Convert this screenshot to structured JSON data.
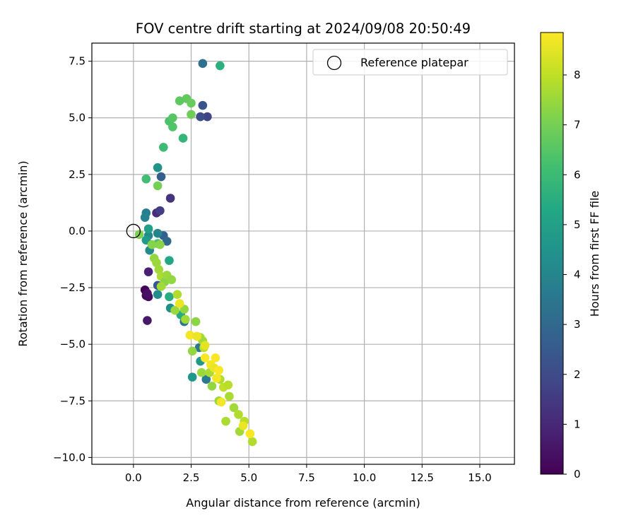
{
  "chart_data": {
    "type": "scatter",
    "title": "FOV centre drift starting at 2024/09/08 20:50:49",
    "xlabel": "Angular distance from reference (arcmin)",
    "ylabel": "Rotation from reference (arcmin)",
    "xlim": [
      -1.8,
      16.5
    ],
    "ylim": [
      -10.3,
      8.3
    ],
    "x_ticks": [
      0,
      2.5,
      5,
      7.5,
      10,
      12.5,
      15
    ],
    "x_tick_labels": [
      "0.0",
      "2.5",
      "5.0",
      "7.5",
      "10.0",
      "12.5",
      "15.0"
    ],
    "y_ticks": [
      7.5,
      5,
      2.5,
      0,
      -2.5,
      -5,
      -7.5,
      -10
    ],
    "y_tick_labels": [
      "7.5",
      "5.0",
      "2.5",
      "0.0",
      "−2.5",
      "−5.0",
      "−7.5",
      "−10.0"
    ],
    "grid": true,
    "legend": {
      "placement": "top-right",
      "entries": [
        "Reference platepar"
      ]
    },
    "reference_point": {
      "label": "Reference platepar",
      "x": 0.0,
      "y": 0.0,
      "marker": "open-circle"
    },
    "colorbar": {
      "label": "Hours from first FF file",
      "colormap": "viridis",
      "range": [
        0,
        8.85
      ],
      "ticks": [
        0,
        1,
        2,
        3,
        4,
        5,
        6,
        7,
        8
      ],
      "tick_labels": [
        "0",
        "1",
        "2",
        "3",
        "4",
        "5",
        "6",
        "7",
        "8"
      ]
    },
    "series": [
      {
        "color_by": "Hours from first FF file",
        "points": [
          {
            "x": 0.5,
            "y": -2.6,
            "c": 0.1
          },
          {
            "x": 0.55,
            "y": -2.85,
            "c": 0.2
          },
          {
            "x": 0.65,
            "y": -2.9,
            "c": 0.3
          },
          {
            "x": 0.6,
            "y": -2.75,
            "c": 0.4
          },
          {
            "x": 0.6,
            "y": -3.95,
            "c": 0.6
          },
          {
            "x": 0.65,
            "y": -1.8,
            "c": 0.8
          },
          {
            "x": 1.0,
            "y": 0.8,
            "c": 1.1
          },
          {
            "x": 1.6,
            "y": 1.45,
            "c": 1.3
          },
          {
            "x": 1.15,
            "y": 0.9,
            "c": 1.6
          },
          {
            "x": 3.2,
            "y": 5.05,
            "c": 1.8
          },
          {
            "x": 2.9,
            "y": 5.05,
            "c": 2.1
          },
          {
            "x": 3.0,
            "y": 5.55,
            "c": 2.3
          },
          {
            "x": 1.2,
            "y": 2.4,
            "c": 2.6
          },
          {
            "x": 1.05,
            "y": -2.4,
            "c": 2.4
          },
          {
            "x": 1.3,
            "y": -0.2,
            "c": 2.7
          },
          {
            "x": 1.45,
            "y": -0.45,
            "c": 3.0
          },
          {
            "x": 3.0,
            "y": 7.4,
            "c": 3.3
          },
          {
            "x": 2.2,
            "y": -4.0,
            "c": 3.4
          },
          {
            "x": 2.85,
            "y": -5.15,
            "c": 3.5
          },
          {
            "x": 3.15,
            "y": -6.55,
            "c": 3.6
          },
          {
            "x": 0.55,
            "y": 0.8,
            "c": 3.7
          },
          {
            "x": 0.5,
            "y": 0.6,
            "c": 3.9
          },
          {
            "x": 1.05,
            "y": -0.1,
            "c": 4.0
          },
          {
            "x": 0.65,
            "y": -0.2,
            "c": 4.1
          },
          {
            "x": 0.7,
            "y": -0.85,
            "c": 4.2
          },
          {
            "x": 1.05,
            "y": -2.8,
            "c": 4.3
          },
          {
            "x": 1.6,
            "y": -3.4,
            "c": 4.4
          },
          {
            "x": 2.55,
            "y": -6.45,
            "c": 4.6
          },
          {
            "x": 2.9,
            "y": -5.75,
            "c": 4.7
          },
          {
            "x": 1.05,
            "y": 2.8,
            "c": 4.5
          },
          {
            "x": 0.55,
            "y": -0.4,
            "c": 4.8
          },
          {
            "x": 0.65,
            "y": 0.1,
            "c": 5.0
          },
          {
            "x": 1.55,
            "y": -1.3,
            "c": 5.3
          },
          {
            "x": 2.05,
            "y": -3.7,
            "c": 5.4
          },
          {
            "x": 1.55,
            "y": -2.9,
            "c": 5.5
          },
          {
            "x": 3.75,
            "y": 7.3,
            "c": 5.6
          },
          {
            "x": 2.15,
            "y": 4.1,
            "c": 5.8
          },
          {
            "x": 1.3,
            "y": 3.7,
            "c": 6.0
          },
          {
            "x": 0.55,
            "y": 2.3,
            "c": 6.1
          },
          {
            "x": 1.05,
            "y": -0.55,
            "c": 6.2
          },
          {
            "x": 1.55,
            "y": 4.85,
            "c": 6.3
          },
          {
            "x": 1.7,
            "y": 4.6,
            "c": 6.4
          },
          {
            "x": 1.7,
            "y": 5.0,
            "c": 6.5
          },
          {
            "x": 2.0,
            "y": 5.75,
            "c": 6.6
          },
          {
            "x": 2.3,
            "y": 5.85,
            "c": 6.7
          },
          {
            "x": 2.5,
            "y": 5.65,
            "c": 6.8
          },
          {
            "x": 2.5,
            "y": 5.15,
            "c": 6.9
          },
          {
            "x": 1.05,
            "y": 2.0,
            "c": 7.0
          },
          {
            "x": 0.25,
            "y": -0.15,
            "c": 7.1
          },
          {
            "x": 0.8,
            "y": -0.6,
            "c": 7.2
          },
          {
            "x": 1.15,
            "y": -0.6,
            "c": 7.3
          },
          {
            "x": 0.9,
            "y": -1.2,
            "c": 7.4
          },
          {
            "x": 1.0,
            "y": -1.4,
            "c": 7.5
          },
          {
            "x": 1.1,
            "y": -1.7,
            "c": 7.6
          },
          {
            "x": 1.2,
            "y": -2.0,
            "c": 7.7
          },
          {
            "x": 1.35,
            "y": -2.25,
            "c": 7.3
          },
          {
            "x": 1.45,
            "y": -1.95,
            "c": 7.5
          },
          {
            "x": 1.65,
            "y": -2.15,
            "c": 7.4
          },
          {
            "x": 1.2,
            "y": -2.45,
            "c": 7.6
          },
          {
            "x": 1.8,
            "y": -3.5,
            "c": 7.5
          },
          {
            "x": 1.9,
            "y": -2.8,
            "c": 7.8
          },
          {
            "x": 2.2,
            "y": -3.45,
            "c": 7.4
          },
          {
            "x": 2.25,
            "y": -3.9,
            "c": 7.6
          },
          {
            "x": 2.7,
            "y": -4.0,
            "c": 7.3
          },
          {
            "x": 2.55,
            "y": -5.3,
            "c": 7.4
          },
          {
            "x": 2.9,
            "y": -4.7,
            "c": 7.7
          },
          {
            "x": 3.0,
            "y": -4.85,
            "c": 7.6
          },
          {
            "x": 3.05,
            "y": -5.15,
            "c": 7.9
          },
          {
            "x": 2.95,
            "y": -6.25,
            "c": 7.5
          },
          {
            "x": 3.3,
            "y": -6.25,
            "c": 7.7
          },
          {
            "x": 3.4,
            "y": -6.85,
            "c": 7.4
          },
          {
            "x": 3.7,
            "y": -7.5,
            "c": 7.5
          },
          {
            "x": 3.75,
            "y": -6.55,
            "c": 7.8
          },
          {
            "x": 3.9,
            "y": -6.9,
            "c": 8.0
          },
          {
            "x": 4.1,
            "y": -6.8,
            "c": 7.9
          },
          {
            "x": 4.15,
            "y": -7.3,
            "c": 7.7
          },
          {
            "x": 4.35,
            "y": -7.8,
            "c": 7.6
          },
          {
            "x": 4.55,
            "y": -8.1,
            "c": 7.8
          },
          {
            "x": 4.0,
            "y": -8.4,
            "c": 7.7
          },
          {
            "x": 4.6,
            "y": -8.85,
            "c": 7.6
          },
          {
            "x": 4.8,
            "y": -8.4,
            "c": 7.9
          },
          {
            "x": 5.15,
            "y": -9.3,
            "c": 7.8
          },
          {
            "x": 2.45,
            "y": -4.6,
            "c": 8.7
          },
          {
            "x": 2.75,
            "y": -4.65,
            "c": 8.6
          },
          {
            "x": 3.1,
            "y": -5.05,
            "c": 8.5
          },
          {
            "x": 3.1,
            "y": -5.6,
            "c": 8.8
          },
          {
            "x": 3.35,
            "y": -5.9,
            "c": 8.7
          },
          {
            "x": 3.55,
            "y": -5.6,
            "c": 8.8
          },
          {
            "x": 3.5,
            "y": -6.05,
            "c": 8.6
          },
          {
            "x": 3.6,
            "y": -6.5,
            "c": 8.7
          },
          {
            "x": 3.7,
            "y": -6.15,
            "c": 8.8
          },
          {
            "x": 3.8,
            "y": -7.55,
            "c": 8.7
          },
          {
            "x": 4.75,
            "y": -8.6,
            "c": 8.6
          },
          {
            "x": 5.05,
            "y": -8.95,
            "c": 8.8
          },
          {
            "x": 2.0,
            "y": -3.2,
            "c": 8.6
          }
        ]
      }
    ]
  }
}
